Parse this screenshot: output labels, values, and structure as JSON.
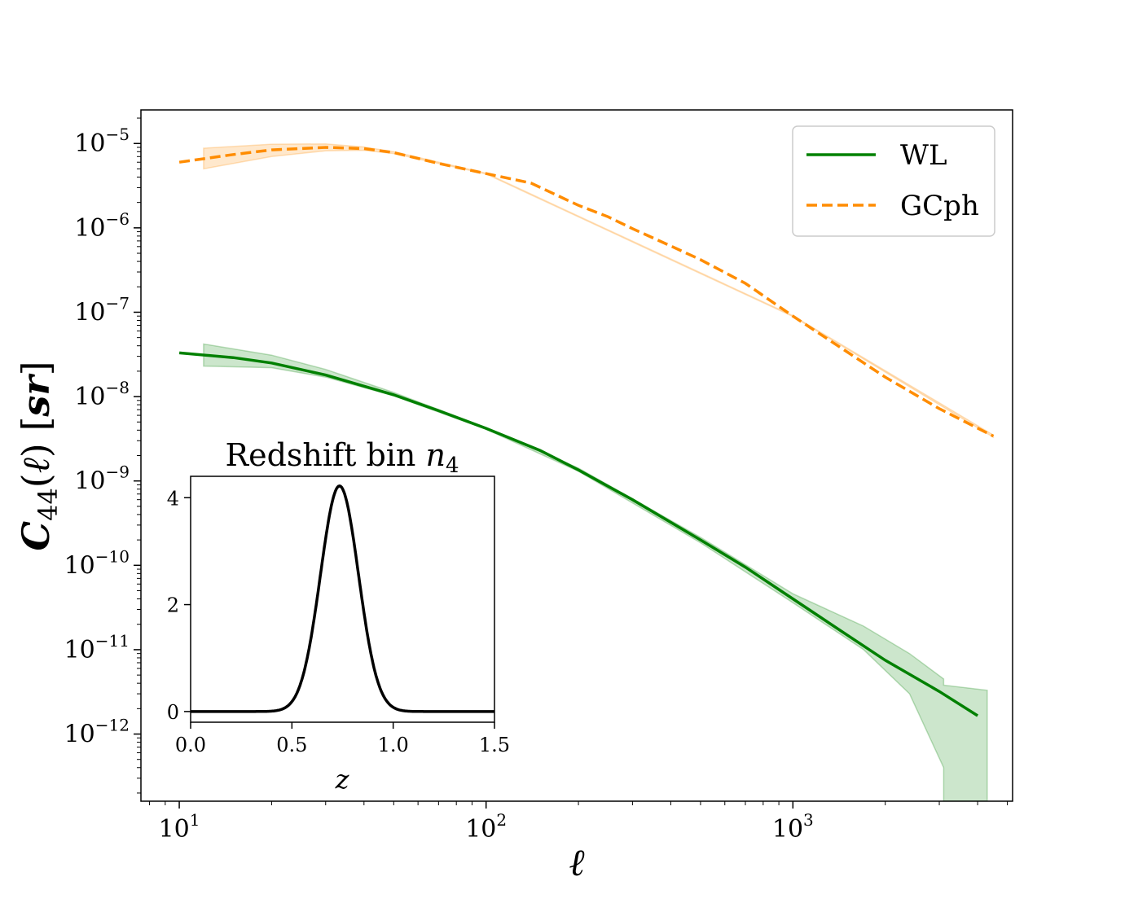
{
  "chart_data": [
    {
      "type": "line",
      "xlabel": "ℓ",
      "ylabel": "C44(ℓ) [sr]",
      "xscale": "log",
      "yscale": "log",
      "xlim": [
        7.5,
        5200
      ],
      "ylim": [
        1.6e-13,
        2.5e-05
      ],
      "xticks": [
        {
          "value": 10,
          "base": "10",
          "exp": "1"
        },
        {
          "value": 100,
          "base": "10",
          "exp": "2"
        },
        {
          "value": 1000,
          "base": "10",
          "exp": "3"
        }
      ],
      "yticks": [
        {
          "value": 1e-05,
          "base": "10",
          "exp": "−5"
        },
        {
          "value": 1e-06,
          "base": "10",
          "exp": "−6"
        },
        {
          "value": 1e-07,
          "base": "10",
          "exp": "−7"
        },
        {
          "value": 1e-08,
          "base": "10",
          "exp": "−8"
        },
        {
          "value": 1e-09,
          "base": "10",
          "exp": "−9"
        },
        {
          "value": 1e-10,
          "base": "10",
          "exp": "−10"
        },
        {
          "value": 1e-11,
          "base": "10",
          "exp": "−11"
        },
        {
          "value": 1e-12,
          "base": "10",
          "exp": "−12"
        }
      ],
      "grid": false,
      "legend_position": "top-right",
      "series": [
        {
          "name": "WL",
          "color": "#008000",
          "style": "solid",
          "x": [
            10,
            15,
            20,
            30,
            50,
            70,
            100,
            150,
            200,
            300,
            500,
            700,
            1000,
            1500,
            2000,
            3000,
            4000
          ],
          "y": [
            3.3e-08,
            2.9e-08,
            2.5e-08,
            1.8e-08,
            1.05e-08,
            6.8e-09,
            4.2e-09,
            2.3e-09,
            1.35e-09,
            6e-10,
            2e-10,
            9.5e-11,
            4e-11,
            1.5e-11,
            7.5e-12,
            3.2e-12,
            1.65e-12
          ],
          "band": {
            "x": [
              12,
              20,
              30,
              50,
              100,
              200,
              500,
              1000,
              1700,
              2400,
              3100,
              3100,
              4300
            ],
            "lower": [
              2.3e-08,
              2.2e-08,
              1.7e-08,
              1.02e-08,
              4.1e-09,
              1.3e-09,
              1.85e-10,
              3.6e-11,
              1e-11,
              3e-12,
              4e-13,
              1.6e-13,
              1.6e-13
            ],
            "upper": [
              4.2e-08,
              3.1e-08,
              2.1e-08,
              1.12e-08,
              4.3e-09,
              1.42e-09,
              2.15e-10,
              4.6e-11,
              1.9e-11,
              9e-12,
              4.5e-12,
              3.8e-12,
              3.3e-12
            ]
          }
        },
        {
          "name": "GCph",
          "color": "#ff8c00",
          "style": "dashed",
          "x": [
            10,
            15,
            20,
            30,
            40,
            50,
            70,
            100,
            140,
            200,
            250,
            300,
            400,
            500,
            700,
            1000,
            1500,
            2000,
            3000,
            4500
          ],
          "y": [
            6e-06,
            7.4e-06,
            8.4e-06,
            9e-06,
            8.7e-06,
            7.8e-06,
            5.8e-06,
            4.4e-06,
            3.4e-06,
            1.85e-06,
            1.35e-06,
            9.8e-07,
            6.1e-07,
            4.2e-07,
            2.2e-07,
            9e-08,
            3.4e-08,
            1.7e-08,
            7.2e-09,
            3.4e-09
          ],
          "band": {
            "x": [
              12,
              20,
              30,
              40,
              50,
              100,
              1000,
              4500
            ],
            "lower": [
              5e-06,
              7e-06,
              8.2e-06,
              8.3e-06,
              7.6e-06,
              4.35e-06,
              8.9e-08,
              3.3e-09
            ],
            "upper": [
              8.8e-06,
              9.8e-06,
              9.9e-06,
              9.1e-06,
              8e-06,
              4.45e-06,
              9.1e-08,
              3.5e-09
            ]
          }
        }
      ]
    },
    {
      "type": "line",
      "title_text": "Redshift bin ",
      "title_var": "n",
      "title_sub": "4",
      "xlabel": "z",
      "ylabel": "",
      "xlim": [
        0,
        1.5
      ],
      "ylim": [
        -0.2,
        4.4
      ],
      "xticks": [
        "0.0",
        "0.5",
        "1.0",
        "1.5"
      ],
      "yticks": [
        "0",
        "2",
        "4"
      ],
      "series": [
        {
          "color": "#000000",
          "style": "solid",
          "model": "gaussian",
          "peak": 4.22,
          "center": 0.735,
          "sigma": 0.094
        }
      ]
    }
  ]
}
